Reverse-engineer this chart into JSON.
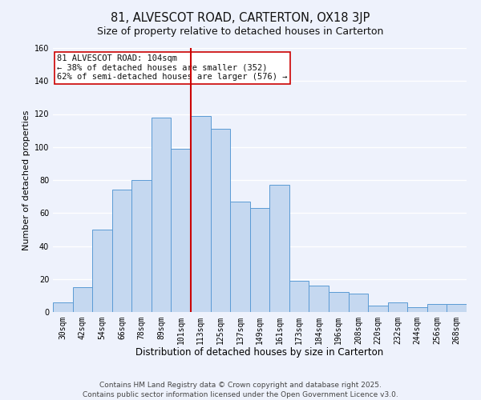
{
  "title": "81, ALVESCOT ROAD, CARTERTON, OX18 3JP",
  "subtitle": "Size of property relative to detached houses in Carterton",
  "xlabel": "Distribution of detached houses by size in Carterton",
  "ylabel": "Number of detached properties",
  "categories": [
    "30sqm",
    "42sqm",
    "54sqm",
    "66sqm",
    "78sqm",
    "89sqm",
    "101sqm",
    "113sqm",
    "125sqm",
    "137sqm",
    "149sqm",
    "161sqm",
    "173sqm",
    "184sqm",
    "196sqm",
    "208sqm",
    "220sqm",
    "232sqm",
    "244sqm",
    "256sqm",
    "268sqm"
  ],
  "values": [
    6,
    15,
    50,
    74,
    80,
    118,
    99,
    119,
    111,
    67,
    63,
    77,
    19,
    16,
    12,
    11,
    4,
    6,
    3,
    5,
    5
  ],
  "bar_color": "#c5d8f0",
  "bar_edge_color": "#5b9bd5",
  "vline_x_idx": 6,
  "vline_color": "#cc0000",
  "annotation_line1": "81 ALVESCOT ROAD: 104sqm",
  "annotation_line2": "← 38% of detached houses are smaller (352)",
  "annotation_line3": "62% of semi-detached houses are larger (576) →",
  "annotation_box_color": "#ffffff",
  "annotation_box_edge": "#cc0000",
  "ylim": [
    0,
    160
  ],
  "yticks": [
    0,
    20,
    40,
    60,
    80,
    100,
    120,
    140,
    160
  ],
  "bg_color": "#eef2fc",
  "grid_color": "#ffffff",
  "footer1": "Contains HM Land Registry data © Crown copyright and database right 2025.",
  "footer2": "Contains public sector information licensed under the Open Government Licence v3.0.",
  "title_fontsize": 10.5,
  "subtitle_fontsize": 9,
  "xlabel_fontsize": 8.5,
  "ylabel_fontsize": 8,
  "tick_fontsize": 7,
  "annotation_fontsize": 7.5,
  "footer_fontsize": 6.5
}
